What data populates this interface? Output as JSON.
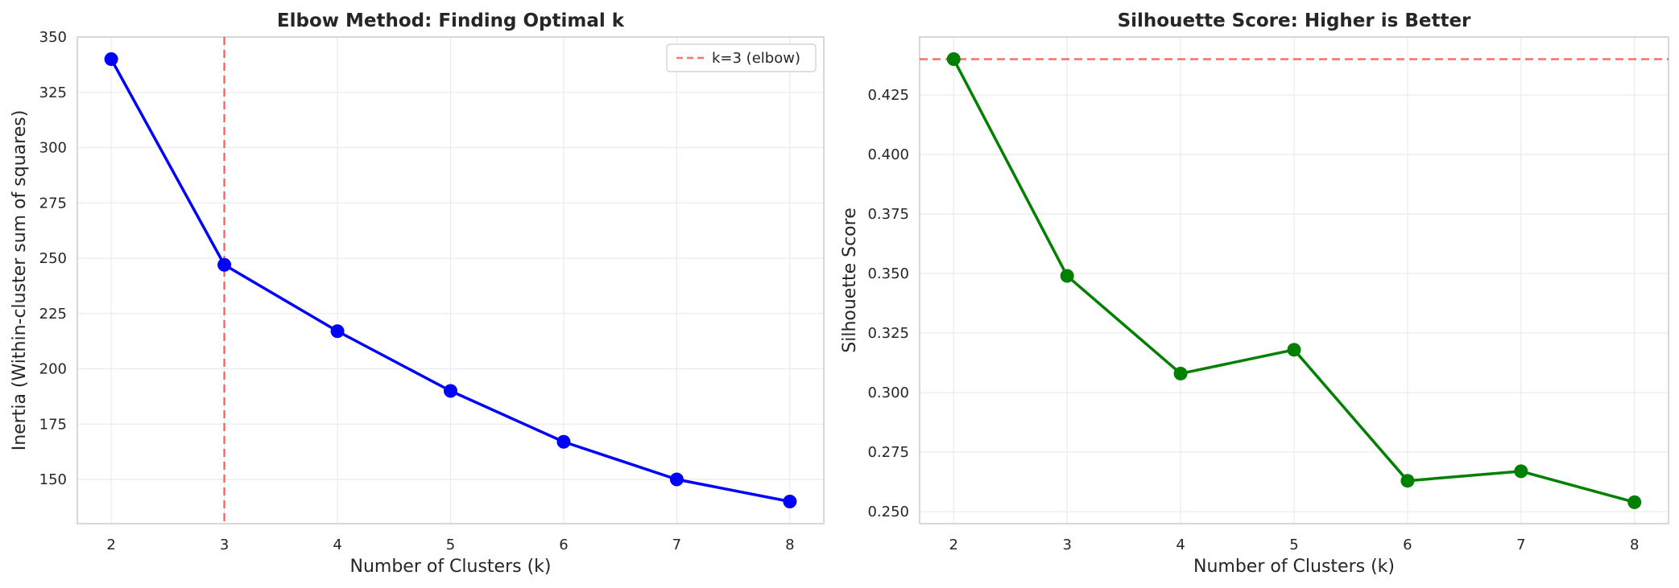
{
  "chart_data": [
    {
      "type": "line",
      "title": "Elbow Method: Finding Optimal k",
      "xlabel": "Number of Clusters (k)",
      "ylabel": "Inertia (Within-cluster sum of squares)",
      "x": [
        2,
        3,
        4,
        5,
        6,
        7,
        8
      ],
      "series": [
        {
          "values": [
            340,
            247,
            217,
            190,
            167,
            150,
            140
          ],
          "color": "#0000ff",
          "marker": "circle"
        }
      ],
      "xticks": [
        "2",
        "3",
        "4",
        "5",
        "6",
        "7",
        "8"
      ],
      "yticks": [
        "150",
        "175",
        "200",
        "225",
        "250",
        "275",
        "300",
        "325",
        "350"
      ],
      "xlim": [
        1.7,
        8.3
      ],
      "ylim": [
        130,
        350
      ],
      "reference_lines": [
        {
          "orientation": "vertical",
          "value": 3,
          "color": "#ff0000",
          "style": "dashed",
          "label": "k=3 (elbow)"
        }
      ],
      "legend": {
        "placement": "top-right",
        "entries": [
          "k=3 (elbow)"
        ]
      },
      "grid": true
    },
    {
      "type": "line",
      "title": "Silhouette Score: Higher is Better",
      "xlabel": "Number of Clusters (k)",
      "ylabel": "Silhouette Score",
      "x": [
        2,
        3,
        4,
        5,
        6,
        7,
        8
      ],
      "series": [
        {
          "values": [
            0.44,
            0.349,
            0.308,
            0.318,
            0.263,
            0.267,
            0.254
          ],
          "color": "#008000",
          "marker": "circle"
        }
      ],
      "xticks": [
        "2",
        "3",
        "4",
        "5",
        "6",
        "7",
        "8"
      ],
      "yticks": [
        "0.250",
        "0.275",
        "0.300",
        "0.325",
        "0.350",
        "0.375",
        "0.400",
        "0.425"
      ],
      "xlim": [
        1.7,
        8.3
      ],
      "ylim": [
        0.245,
        0.4493
      ],
      "reference_lines": [
        {
          "orientation": "horizontal",
          "value": 0.44,
          "color": "#ff0000",
          "style": "dashed"
        }
      ],
      "grid": true
    }
  ]
}
